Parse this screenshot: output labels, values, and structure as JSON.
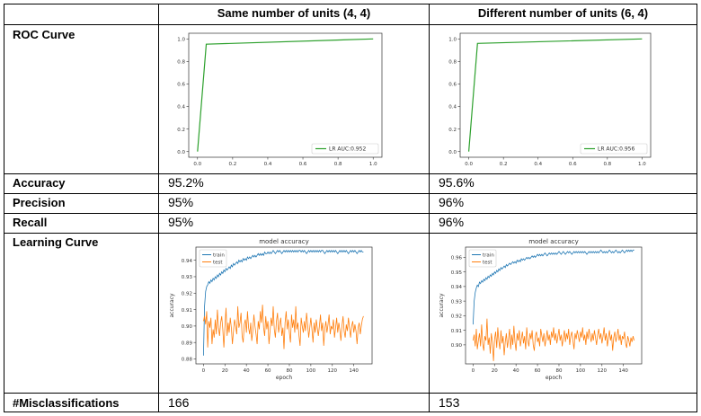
{
  "table": {
    "headers": [
      "",
      "Same number of units (4, 4)",
      "Different number of units (6, 4)"
    ],
    "rows": [
      {
        "label": "ROC Curve"
      },
      {
        "label": "Accuracy",
        "values": [
          "95.2%",
          "95.6%"
        ]
      },
      {
        "label": "Precision",
        "values": [
          "95%",
          "96%"
        ]
      },
      {
        "label": "Recall",
        "values": [
          "95%",
          "96%"
        ]
      },
      {
        "label": "Learning Curve"
      },
      {
        "label": "#Misclassifications",
        "values": [
          "166",
          "153"
        ]
      }
    ]
  },
  "colors": {
    "roc": "#2ca02c",
    "train": "#1f77b4",
    "test": "#ff7f0e"
  },
  "chart_data": [
    {
      "type": "line",
      "id": "roc_a",
      "series": [
        {
          "name": "LR AUC:0.952",
          "x": [
            0.0,
            0.05,
            1.0
          ],
          "y": [
            0.0,
            0.953,
            1.0
          ]
        }
      ],
      "xlim": [
        -0.05,
        1.05
      ],
      "ylim": [
        -0.05,
        1.05
      ],
      "xticks": [
        "0.0",
        "0.2",
        "0.4",
        "0.6",
        "0.8",
        "1.0"
      ],
      "yticks": [
        "0.0",
        "0.2",
        "0.4",
        "0.6",
        "0.8",
        "1.0"
      ],
      "legend": "bottom-right"
    },
    {
      "type": "line",
      "id": "roc_b",
      "series": [
        {
          "name": "LR AUC:0.956",
          "x": [
            0.0,
            0.05,
            1.0
          ],
          "y": [
            0.0,
            0.96,
            1.0
          ]
        }
      ],
      "xlim": [
        -0.05,
        1.05
      ],
      "ylim": [
        -0.05,
        1.05
      ],
      "xticks": [
        "0.0",
        "0.2",
        "0.4",
        "0.6",
        "0.8",
        "1.0"
      ],
      "yticks": [
        "0.0",
        "0.2",
        "0.4",
        "0.6",
        "0.8",
        "1.0"
      ],
      "legend": "bottom-right"
    },
    {
      "type": "line",
      "id": "lc_a",
      "title": "model accuracy",
      "xlabel": "epoch",
      "ylabel": "accuracy",
      "xlim": [
        -7,
        157
      ],
      "ylim": [
        0.877,
        0.948
      ],
      "xticks": [
        "0",
        "20",
        "40",
        "60",
        "80",
        "100",
        "120",
        "140"
      ],
      "yticks": [
        "0.88",
        "0.89",
        "0.90",
        "0.91",
        "0.92",
        "0.93",
        "0.94"
      ],
      "legend": "top-left",
      "series": [
        {
          "name": "train",
          "y": [
            0.882,
            0.912,
            0.921,
            0.924,
            0.925,
            0.927,
            0.926,
            0.928,
            0.927,
            0.929,
            0.928,
            0.93,
            0.929,
            0.931,
            0.93,
            0.932,
            0.931,
            0.933,
            0.932,
            0.934,
            0.933,
            0.935,
            0.934,
            0.935,
            0.936,
            0.935,
            0.937,
            0.936,
            0.938,
            0.937,
            0.938,
            0.939,
            0.938,
            0.94,
            0.939,
            0.94,
            0.939,
            0.941,
            0.94,
            0.941,
            0.94,
            0.942,
            0.941,
            0.942,
            0.941,
            0.942,
            0.943,
            0.942,
            0.943,
            0.942,
            0.943,
            0.944,
            0.943,
            0.944,
            0.943,
            0.944,
            0.943,
            0.945,
            0.944,
            0.944,
            0.945,
            0.944,
            0.945,
            0.944,
            0.945,
            0.946,
            0.945,
            0.944,
            0.945,
            0.946,
            0.945,
            0.946,
            0.945,
            0.944,
            0.945,
            0.946,
            0.945,
            0.946,
            0.945,
            0.946,
            0.945,
            0.946,
            0.945,
            0.946,
            0.945,
            0.946,
            0.945,
            0.946,
            0.945,
            0.946,
            0.946,
            0.945,
            0.946,
            0.945,
            0.946,
            0.945,
            0.944,
            0.945,
            0.946,
            0.945,
            0.946,
            0.945,
            0.946,
            0.945,
            0.946,
            0.945,
            0.946,
            0.945,
            0.946,
            0.945,
            0.946,
            0.946,
            0.945,
            0.944,
            0.945,
            0.946,
            0.945,
            0.946,
            0.945,
            0.946,
            0.945,
            0.946,
            0.945,
            0.946,
            0.945,
            0.944,
            0.945,
            0.946,
            0.945,
            0.946,
            0.945,
            0.946,
            0.945,
            0.946,
            0.945,
            0.944,
            0.945,
            0.946,
            0.945,
            0.946,
            0.945,
            0.946,
            0.945,
            0.944,
            0.945,
            0.946,
            0.945,
            0.946,
            0.945,
            0.945
          ]
        },
        {
          "name": "test",
          "y": [
            0.903,
            0.906,
            0.901,
            0.909,
            0.887,
            0.903,
            0.899,
            0.905,
            0.889,
            0.898,
            0.893,
            0.904,
            0.895,
            0.91,
            0.899,
            0.894,
            0.902,
            0.906,
            0.898,
            0.887,
            0.9,
            0.911,
            0.894,
            0.902,
            0.896,
            0.905,
            0.899,
            0.889,
            0.897,
            0.904,
            0.9,
            0.895,
            0.912,
            0.899,
            0.902,
            0.908,
            0.894,
            0.89,
            0.901,
            0.904,
            0.896,
            0.909,
            0.899,
            0.895,
            0.902,
            0.891,
            0.897,
            0.907,
            0.9,
            0.895,
            0.889,
            0.903,
            0.898,
            0.909,
            0.902,
            0.913,
            0.899,
            0.894,
            0.906,
            0.898,
            0.903,
            0.889,
            0.897,
            0.905,
            0.9,
            0.912,
            0.898,
            0.893,
            0.903,
            0.908,
            0.896,
            0.901,
            0.905,
            0.894,
            0.899,
            0.886,
            0.902,
            0.909,
            0.898,
            0.904,
            0.896,
            0.89,
            0.907,
            0.899,
            0.904,
            0.896,
            0.912,
            0.898,
            0.902,
            0.894,
            0.888,
            0.905,
            0.9,
            0.896,
            0.903,
            0.897,
            0.908,
            0.901,
            0.893,
            0.899,
            0.905,
            0.898,
            0.89,
            0.902,
            0.896,
            0.904,
            0.899,
            0.894,
            0.9,
            0.907,
            0.897,
            0.902,
            0.888,
            0.898,
            0.903,
            0.896,
            0.901,
            0.907,
            0.895,
            0.9,
            0.898,
            0.904,
            0.893,
            0.899,
            0.905,
            0.896,
            0.902,
            0.898,
            0.891,
            0.9,
            0.906,
            0.897,
            0.893,
            0.901,
            0.897,
            0.905,
            0.899,
            0.893,
            0.9,
            0.903,
            0.896,
            0.901,
            0.897,
            0.889,
            0.899,
            0.902,
            0.895,
            0.9,
            0.904,
            0.906
          ]
        }
      ]
    },
    {
      "type": "line",
      "id": "lc_b",
      "title": "model accuracy",
      "xlabel": "epoch",
      "ylabel": "accuracy",
      "xlim": [
        -7,
        157
      ],
      "ylim": [
        0.887,
        0.967
      ],
      "xticks": [
        "0",
        "20",
        "40",
        "60",
        "80",
        "100",
        "120",
        "140"
      ],
      "yticks": [
        "0.90",
        "0.91",
        "0.92",
        "0.93",
        "0.94",
        "0.95",
        "0.96"
      ],
      "legend": "top-left",
      "series": [
        {
          "name": "train",
          "y": [
            0.914,
            0.93,
            0.936,
            0.939,
            0.941,
            0.94,
            0.943,
            0.942,
            0.944,
            0.943,
            0.945,
            0.944,
            0.946,
            0.945,
            0.947,
            0.946,
            0.948,
            0.947,
            0.949,
            0.948,
            0.95,
            0.949,
            0.951,
            0.95,
            0.952,
            0.951,
            0.953,
            0.952,
            0.953,
            0.954,
            0.953,
            0.955,
            0.954,
            0.955,
            0.956,
            0.955,
            0.956,
            0.957,
            0.956,
            0.957,
            0.956,
            0.958,
            0.957,
            0.958,
            0.957,
            0.959,
            0.958,
            0.959,
            0.958,
            0.959,
            0.96,
            0.959,
            0.96,
            0.959,
            0.96,
            0.961,
            0.96,
            0.961,
            0.96,
            0.961,
            0.962,
            0.961,
            0.962,
            0.961,
            0.962,
            0.961,
            0.962,
            0.963,
            0.962,
            0.961,
            0.962,
            0.963,
            0.962,
            0.963,
            0.962,
            0.963,
            0.962,
            0.963,
            0.962,
            0.963,
            0.964,
            0.963,
            0.962,
            0.963,
            0.964,
            0.963,
            0.962,
            0.963,
            0.964,
            0.963,
            0.964,
            0.963,
            0.962,
            0.963,
            0.964,
            0.963,
            0.964,
            0.963,
            0.964,
            0.963,
            0.964,
            0.963,
            0.964,
            0.963,
            0.964,
            0.963,
            0.962,
            0.963,
            0.964,
            0.963,
            0.964,
            0.963,
            0.964,
            0.963,
            0.964,
            0.963,
            0.964,
            0.963,
            0.964,
            0.965,
            0.964,
            0.963,
            0.964,
            0.963,
            0.964,
            0.963,
            0.964,
            0.965,
            0.964,
            0.963,
            0.964,
            0.963,
            0.964,
            0.965,
            0.964,
            0.963,
            0.964,
            0.963,
            0.964,
            0.965,
            0.964,
            0.963,
            0.964,
            0.965,
            0.964,
            0.965,
            0.964,
            0.965,
            0.964,
            0.965,
            0.965
          ]
        },
        {
          "name": "test",
          "y": [
            0.903,
            0.907,
            0.899,
            0.911,
            0.897,
            0.903,
            0.908,
            0.899,
            0.914,
            0.901,
            0.896,
            0.906,
            0.903,
            0.918,
            0.9,
            0.905,
            0.894,
            0.908,
            0.902,
            0.889,
            0.904,
            0.909,
            0.898,
            0.912,
            0.903,
            0.897,
            0.91,
            0.901,
            0.906,
            0.893,
            0.902,
            0.908,
            0.898,
            0.904,
            0.911,
            0.897,
            0.907,
            0.9,
            0.913,
            0.902,
            0.896,
            0.908,
            0.903,
            0.91,
            0.899,
            0.904,
            0.909,
            0.901,
            0.906,
            0.897,
            0.912,
            0.903,
            0.899,
            0.908,
            0.904,
            0.91,
            0.9,
            0.896,
            0.906,
            0.909,
            0.902,
            0.905,
            0.899,
            0.911,
            0.906,
            0.902,
            0.908,
            0.899,
            0.904,
            0.91,
            0.903,
            0.907,
            0.9,
            0.909,
            0.905,
            0.912,
            0.903,
            0.908,
            0.901,
            0.906,
            0.911,
            0.903,
            0.907,
            0.899,
            0.905,
            0.91,
            0.902,
            0.908,
            0.904,
            0.911,
            0.9,
            0.906,
            0.909,
            0.903,
            0.897,
            0.908,
            0.904,
            0.91,
            0.906,
            0.902,
            0.909,
            0.905,
            0.912,
            0.903,
            0.907,
            0.9,
            0.909,
            0.904,
            0.911,
            0.906,
            0.902,
            0.908,
            0.903,
            0.91,
            0.905,
            0.9,
            0.907,
            0.911,
            0.904,
            0.908,
            0.901,
            0.906,
            0.912,
            0.903,
            0.908,
            0.899,
            0.905,
            0.91,
            0.903,
            0.907,
            0.896,
            0.905,
            0.909,
            0.902,
            0.906,
            0.911,
            0.903,
            0.907,
            0.9,
            0.906,
            0.904,
            0.909,
            0.901,
            0.898,
            0.906,
            0.903,
            0.899,
            0.905,
            0.902,
            0.906,
            0.903
          ]
        }
      ]
    }
  ]
}
